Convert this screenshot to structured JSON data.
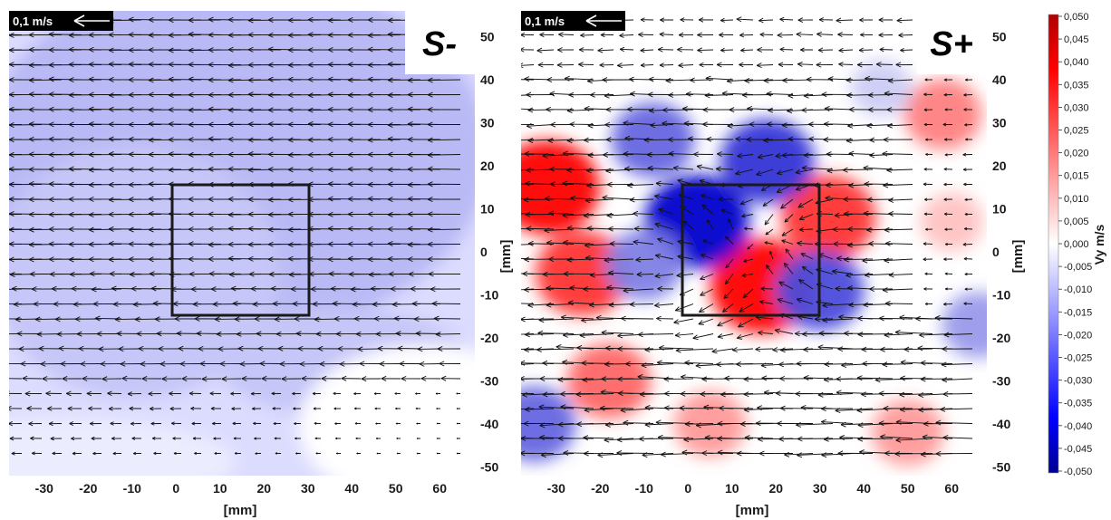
{
  "chart_data": {
    "type": "vector-field",
    "panels": [
      {
        "label": "S-",
        "scale_label": "0,1 m/s",
        "xlabel": "[mm]",
        "ylabel": "[mm]",
        "xlim": [
          -38,
          68
        ],
        "ylim": [
          -52,
          56
        ],
        "xticks": [
          "-30",
          "-20",
          "-10",
          "0",
          "10",
          "20",
          "30",
          "40",
          "50",
          "60"
        ],
        "yticks": [
          "50",
          "40",
          "30",
          "20",
          "10",
          "0",
          "-10",
          "-20",
          "-30",
          "-40",
          "-50"
        ],
        "obstacle": [
          0,
          -14,
          30,
          16
        ],
        "flow": "uniform",
        "mean_vy": -0.012
      },
      {
        "label": "S+",
        "scale_label": "0,1 m/s",
        "xlabel": "[mm]",
        "ylabel": "[mm]",
        "xlim": [
          -38,
          68
        ],
        "ylim": [
          -52,
          56
        ],
        "xticks": [
          "-30",
          "-20",
          "-10",
          "0",
          "10",
          "20",
          "30",
          "40",
          "50",
          "60"
        ],
        "yticks": [
          "50",
          "40",
          "30",
          "20",
          "10",
          "0",
          "-10",
          "-20",
          "-30",
          "-40",
          "-50"
        ],
        "obstacle": [
          0,
          -14,
          30,
          16
        ],
        "flow": "vortical",
        "vy_regions": [
          {
            "x": -32,
            "y": 15,
            "vy": 0.05
          },
          {
            "x": -24,
            "y": -5,
            "vy": 0.04
          },
          {
            "x": -18,
            "y": -30,
            "vy": 0.03
          },
          {
            "x": 5,
            "y": -40,
            "vy": 0.02
          },
          {
            "x": 17,
            "y": -8,
            "vy": 0.05
          },
          {
            "x": 32,
            "y": 8,
            "vy": 0.04
          },
          {
            "x": 58,
            "y": 32,
            "vy": 0.025
          },
          {
            "x": 50,
            "y": -42,
            "vy": 0.02
          },
          {
            "x": 60,
            "y": 7,
            "vy": 0.012
          },
          {
            "x": 2,
            "y": 7,
            "vy": -0.05
          },
          {
            "x": 18,
            "y": 21,
            "vy": -0.04
          },
          {
            "x": -8,
            "y": 26,
            "vy": -0.03
          },
          {
            "x": 30,
            "y": -9,
            "vy": -0.035
          },
          {
            "x": -10,
            "y": -3,
            "vy": -0.025
          },
          {
            "x": -35,
            "y": -40,
            "vy": -0.03
          },
          {
            "x": 66,
            "y": -17,
            "vy": -0.02
          },
          {
            "x": 44,
            "y": 38,
            "vy": -0.01
          }
        ]
      }
    ],
    "colorbar": {
      "title": "Vy m/s",
      "min": -0.05,
      "max": 0.05,
      "ticks": [
        "0,050",
        "0,045",
        "0,040",
        "0,035",
        "0,030",
        "0,025",
        "0,020",
        "0,015",
        "0,010",
        "0,005",
        "0,000",
        "-0,005",
        "-0,010",
        "-0,015",
        "-0,020",
        "-0,025",
        "-0,030",
        "-0,035",
        "-0,040",
        "-0,045",
        "-0,050"
      ],
      "colors": {
        "max": "#ff0000",
        "mid": "#ffffff",
        "min": "#0000cc"
      }
    }
  }
}
